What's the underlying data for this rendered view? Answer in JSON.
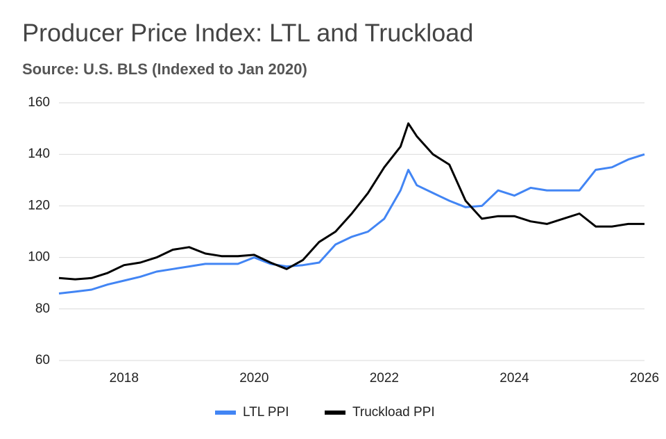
{
  "chart_data": {
    "type": "line",
    "title": "Producer Price Index: LTL and Truckload",
    "subtitle": "Source: U.S. BLS (Indexed to Jan 2020)",
    "x": [
      2017,
      2017.25,
      2017.5,
      2017.75,
      2018,
      2018.25,
      2018.5,
      2018.75,
      2019,
      2019.25,
      2019.5,
      2019.75,
      2020,
      2020.25,
      2020.5,
      2020.75,
      2021,
      2021.25,
      2021.5,
      2021.75,
      2022,
      2022.25,
      2022.37,
      2022.5,
      2022.75,
      2023,
      2023.25,
      2023.5,
      2023.75,
      2024,
      2024.25,
      2024.5,
      2024.75,
      2025,
      2025.25,
      2025.5,
      2025.75,
      2026
    ],
    "series": [
      {
        "name": "LTL PPI",
        "color": "#4285f4",
        "values": [
          86,
          86.7,
          87.5,
          89.5,
          91,
          92.5,
          94.5,
          95.5,
          96.5,
          97.5,
          97.5,
          97.5,
          100,
          97.5,
          96.5,
          97,
          98,
          105,
          108,
          110,
          115,
          126,
          134,
          128,
          125,
          122,
          119.5,
          120,
          126,
          124,
          127,
          126,
          126,
          126,
          134,
          135,
          138,
          140
        ]
      },
      {
        "name": "Truckload PPI",
        "color": "#000000",
        "values": [
          92,
          91.5,
          92,
          94,
          97,
          98,
          100,
          103,
          104,
          101.5,
          100.5,
          100.5,
          101,
          98,
          95.5,
          99,
          106,
          110,
          117,
          125,
          135,
          143,
          152,
          147,
          140,
          136,
          122,
          115,
          116,
          116,
          114,
          113,
          115,
          117,
          112,
          112,
          113,
          113
        ]
      }
    ],
    "xlim": [
      2017,
      2026
    ],
    "xticks": [
      2018,
      2020,
      2022,
      2024,
      2026
    ],
    "ylim": [
      60,
      160
    ],
    "yticks": [
      60,
      80,
      100,
      120,
      140,
      160
    ],
    "grid": true,
    "legend": "bottom"
  }
}
